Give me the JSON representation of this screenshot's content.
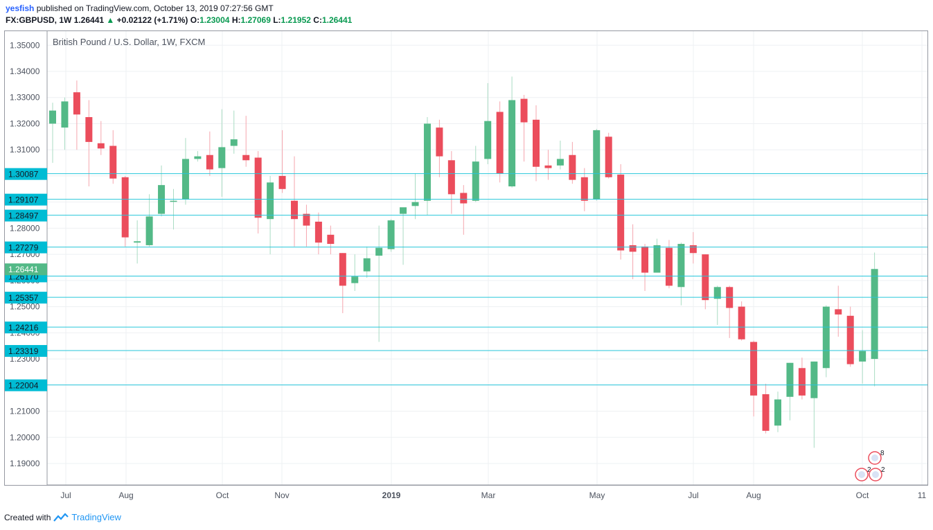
{
  "header": {
    "author": "yesfish",
    "published": "published on TradingView.com, October 13, 2019 07:27:56 GMT",
    "symbol_line": "FX:GBPUSD, 1W  1.26441",
    "change": "+0.02122 (+1.71%)",
    "o_label": "O:",
    "o_value": "1.23004",
    "h_label": "H:",
    "h_value": "1.27069",
    "l_label": "L:",
    "l_value": "1.21952",
    "c_label": "C:",
    "c_value": "1.26441"
  },
  "footer": {
    "created_with": "Created with",
    "brand": "TradingView"
  },
  "colors": {
    "up": "#53b987",
    "down": "#eb4d5c",
    "line": "#26c6da",
    "label": "#00bcd4",
    "price": "#53b987"
  },
  "chart_data": {
    "type": "candlestick",
    "title": "British Pound / U.S. Dollar, 1W, FXCM",
    "ylim": [
      1.185,
      1.355
    ],
    "y_ticks": [
      "1.19000",
      "1.20000",
      "1.21000",
      "1.22000",
      "1.23000",
      "1.24000",
      "1.25000",
      "1.26000",
      "1.27000",
      "1.28000",
      "1.29000",
      "1.30000",
      "1.31000",
      "1.32000",
      "1.33000",
      "1.34000",
      "1.35000"
    ],
    "x_ticks": [
      "Jul",
      "Aug",
      "Oct",
      "Nov",
      "2019",
      "Mar",
      "May",
      "Jul",
      "Aug",
      "Oct",
      "11"
    ],
    "x_tick_bold": "2019",
    "horizontal_levels": [
      "1.30087",
      "1.29107",
      "1.28497",
      "1.27279",
      "1.26170",
      "1.25357",
      "1.24216",
      "1.23319",
      "1.22004"
    ],
    "last_price": "1.26441",
    "candles": [
      {
        "o": 1.32,
        "h": 1.328,
        "l": 1.305,
        "c": 1.325
      },
      {
        "o": 1.3185,
        "h": 1.33,
        "l": 1.31,
        "c": 1.3285
      },
      {
        "o": 1.332,
        "h": 1.3365,
        "l": 1.31,
        "c": 1.3235
      },
      {
        "o": 1.3225,
        "h": 1.329,
        "l": 1.296,
        "c": 1.313
      },
      {
        "o": 1.3125,
        "h": 1.321,
        "l": 1.308,
        "c": 1.3105
      },
      {
        "o": 1.3115,
        "h": 1.3175,
        "l": 1.297,
        "c": 1.299
      },
      {
        "o": 1.2995,
        "h": 1.3,
        "l": 1.273,
        "c": 1.2765
      },
      {
        "o": 1.2745,
        "h": 1.283,
        "l": 1.2665,
        "c": 1.275
      },
      {
        "o": 1.2735,
        "h": 1.293,
        "l": 1.273,
        "c": 1.2845
      },
      {
        "o": 1.2855,
        "h": 1.304,
        "l": 1.2845,
        "c": 1.2965
      },
      {
        "o": 1.2905,
        "h": 1.295,
        "l": 1.2795,
        "c": 1.2905
      },
      {
        "o": 1.291,
        "h": 1.3145,
        "l": 1.289,
        "c": 1.3065
      },
      {
        "o": 1.3065,
        "h": 1.3095,
        "l": 1.3055,
        "c": 1.3075
      },
      {
        "o": 1.308,
        "h": 1.317,
        "l": 1.3,
        "c": 1.3025
      },
      {
        "o": 1.303,
        "h": 1.3255,
        "l": 1.292,
        "c": 1.311
      },
      {
        "o": 1.3115,
        "h": 1.325,
        "l": 1.3085,
        "c": 1.314
      },
      {
        "o": 1.308,
        "h": 1.323,
        "l": 1.3035,
        "c": 1.306
      },
      {
        "o": 1.307,
        "h": 1.3095,
        "l": 1.278,
        "c": 1.284
      },
      {
        "o": 1.2835,
        "h": 1.3,
        "l": 1.27,
        "c": 1.2975
      },
      {
        "o": 1.3,
        "h": 1.3175,
        "l": 1.2935,
        "c": 1.295
      },
      {
        "o": 1.2905,
        "h": 1.3075,
        "l": 1.273,
        "c": 1.2835
      },
      {
        "o": 1.2855,
        "h": 1.289,
        "l": 1.273,
        "c": 1.281
      },
      {
        "o": 1.2825,
        "h": 1.286,
        "l": 1.27,
        "c": 1.2745
      },
      {
        "o": 1.2775,
        "h": 1.281,
        "l": 1.27,
        "c": 1.274
      },
      {
        "o": 1.2705,
        "h": 1.2705,
        "l": 1.2475,
        "c": 1.258
      },
      {
        "o": 1.259,
        "h": 1.27,
        "l": 1.256,
        "c": 1.2615
      },
      {
        "o": 1.2635,
        "h": 1.273,
        "l": 1.261,
        "c": 1.2685
      },
      {
        "o": 1.2695,
        "h": 1.281,
        "l": 1.2365,
        "c": 1.2725
      },
      {
        "o": 1.272,
        "h": 1.2835,
        "l": 1.271,
        "c": 1.283
      },
      {
        "o": 1.2855,
        "h": 1.287,
        "l": 1.266,
        "c": 1.288
      },
      {
        "o": 1.2885,
        "h": 1.301,
        "l": 1.2835,
        "c": 1.29
      },
      {
        "o": 1.2905,
        "h": 1.3225,
        "l": 1.285,
        "c": 1.32
      },
      {
        "o": 1.3185,
        "h": 1.3215,
        "l": 1.2995,
        "c": 1.3075
      },
      {
        "o": 1.306,
        "h": 1.3095,
        "l": 1.2855,
        "c": 1.293
      },
      {
        "o": 1.2935,
        "h": 1.2965,
        "l": 1.2775,
        "c": 1.2895
      },
      {
        "o": 1.2905,
        "h": 1.3115,
        "l": 1.29,
        "c": 1.3055
      },
      {
        "o": 1.3065,
        "h": 1.3355,
        "l": 1.3045,
        "c": 1.321
      },
      {
        "o": 1.3245,
        "h": 1.3285,
        "l": 1.2975,
        "c": 1.301
      },
      {
        "o": 1.296,
        "h": 1.338,
        "l": 1.2955,
        "c": 1.329
      },
      {
        "o": 1.3295,
        "h": 1.331,
        "l": 1.3055,
        "c": 1.3205
      },
      {
        "o": 1.3215,
        "h": 1.327,
        "l": 1.298,
        "c": 1.3035
      },
      {
        "o": 1.304,
        "h": 1.31,
        "l": 1.2985,
        "c": 1.303
      },
      {
        "o": 1.304,
        "h": 1.3135,
        "l": 1.3025,
        "c": 1.3065
      },
      {
        "o": 1.308,
        "h": 1.313,
        "l": 1.297,
        "c": 1.2985
      },
      {
        "o": 1.2995,
        "h": 1.303,
        "l": 1.2865,
        "c": 1.2905
      },
      {
        "o": 1.291,
        "h": 1.318,
        "l": 1.2905,
        "c": 1.3175
      },
      {
        "o": 1.315,
        "h": 1.3165,
        "l": 1.299,
        "c": 1.2995
      },
      {
        "o": 1.3005,
        "h": 1.3045,
        "l": 1.268,
        "c": 1.2715
      },
      {
        "o": 1.2735,
        "h": 1.2815,
        "l": 1.2605,
        "c": 1.271
      },
      {
        "o": 1.273,
        "h": 1.274,
        "l": 1.256,
        "c": 1.263
      },
      {
        "o": 1.263,
        "h": 1.276,
        "l": 1.263,
        "c": 1.2735
      },
      {
        "o": 1.2725,
        "h": 1.2755,
        "l": 1.257,
        "c": 1.258
      },
      {
        "o": 1.2575,
        "h": 1.2745,
        "l": 1.2505,
        "c": 1.274
      },
      {
        "o": 1.2735,
        "h": 1.2785,
        "l": 1.2665,
        "c": 1.2705
      },
      {
        "o": 1.27,
        "h": 1.27,
        "l": 1.249,
        "c": 1.2525
      },
      {
        "o": 1.253,
        "h": 1.258,
        "l": 1.243,
        "c": 1.2575
      },
      {
        "o": 1.2575,
        "h": 1.258,
        "l": 1.238,
        "c": 1.2495
      },
      {
        "o": 1.25,
        "h": 1.252,
        "l": 1.237,
        "c": 1.2375
      },
      {
        "o": 1.2365,
        "h": 1.237,
        "l": 1.208,
        "c": 1.216
      },
      {
        "o": 1.2165,
        "h": 1.2205,
        "l": 1.2015,
        "c": 1.2025
      },
      {
        "o": 1.2045,
        "h": 1.2175,
        "l": 1.202,
        "c": 1.2145
      },
      {
        "o": 1.2155,
        "h": 1.2285,
        "l": 1.2065,
        "c": 1.2285
      },
      {
        "o": 1.2265,
        "h": 1.2305,
        "l": 1.2145,
        "c": 1.216
      },
      {
        "o": 1.215,
        "h": 1.229,
        "l": 1.196,
        "c": 1.229
      },
      {
        "o": 1.2265,
        "h": 1.2505,
        "l": 1.223,
        "c": 1.25
      },
      {
        "o": 1.249,
        "h": 1.258,
        "l": 1.2385,
        "c": 1.247
      },
      {
        "o": 1.2465,
        "h": 1.25,
        "l": 1.227,
        "c": 1.228
      },
      {
        "o": 1.229,
        "h": 1.241,
        "l": 1.2205,
        "c": 1.233
      },
      {
        "o": 1.23,
        "h": 1.2707,
        "l": 1.2195,
        "c": 1.2644
      }
    ]
  }
}
